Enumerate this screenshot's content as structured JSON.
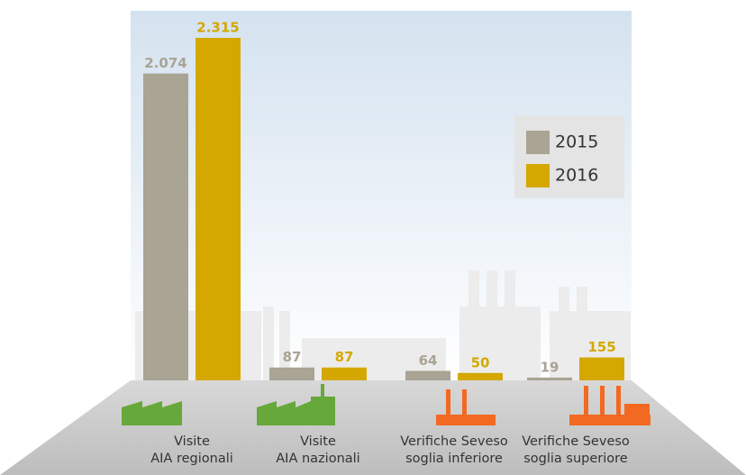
{
  "chart_data": {
    "type": "bar",
    "categories": [
      [
        "Visite",
        "AIA regionali"
      ],
      [
        "Visite",
        "AIA nazionali"
      ],
      [
        "Verifiche Seveso",
        "soglia inferiore"
      ],
      [
        "Verifiche Seveso",
        "soglia superiore"
      ]
    ],
    "series": [
      {
        "name": "2015",
        "color": "#a9a493",
        "values": [
          2074,
          87,
          64,
          19
        ],
        "value_labels": [
          "2.074",
          "87",
          "64",
          "19"
        ]
      },
      {
        "name": "2016",
        "color": "#d4a800",
        "values": [
          2315,
          87,
          50,
          155
        ],
        "value_labels": [
          "2.315",
          "87",
          "50",
          "155"
        ]
      }
    ],
    "legend": "right"
  }
}
